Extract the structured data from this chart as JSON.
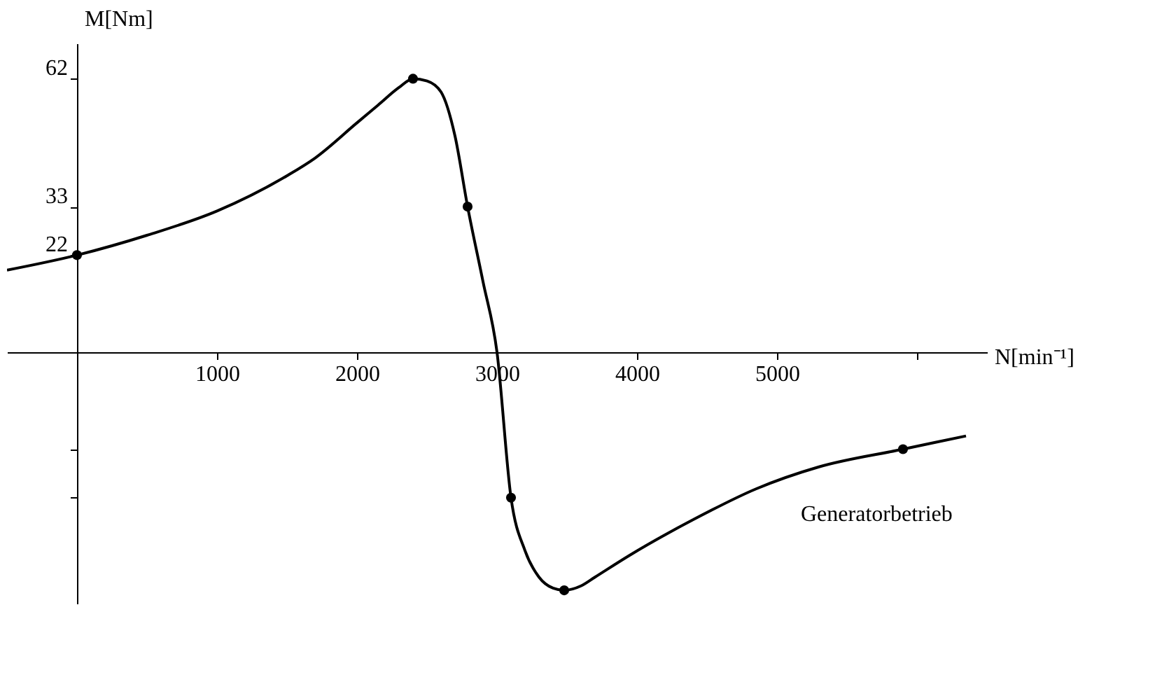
{
  "chart_data": {
    "type": "line",
    "xlabel": "N[min⁻¹]",
    "ylabel": "M[Nm]",
    "xlim": [
      -500,
      6500
    ],
    "ylim": [
      -57,
      70
    ],
    "xticks": [
      1000,
      2000,
      3000,
      4000,
      5000,
      {
        "value": 6000,
        "label": null
      }
    ],
    "yticks": [
      62,
      33,
      22,
      {
        "value": -22,
        "label": null
      },
      {
        "value": -33,
        "label": null
      }
    ],
    "grid": false,
    "series": [
      {
        "color": "#000000",
        "marker": "none",
        "x": [
          -500,
          0,
          500,
          1000,
          1500,
          1700,
          2000,
          2150,
          2300,
          2400,
          2500,
          2600,
          2700,
          2790,
          2900,
          3000,
          3100,
          3200,
          3300,
          3400,
          3480,
          3600,
          3700,
          3950,
          4400,
          4850,
          5300,
          5900,
          6350
        ],
        "values": [
          18.6,
          22,
          26.5,
          32,
          40,
          44,
          52,
          56,
          60,
          62,
          61.5,
          59,
          49,
          33,
          16,
          0,
          -33,
          -45,
          -51,
          -53.5,
          -54,
          -53,
          -51,
          -46,
          -38,
          -31,
          -26,
          -22,
          -19
        ]
      },
      {
        "type": "scatter",
        "color": "#000000",
        "marker": "circle",
        "x": [
          0,
          2400,
          2790,
          3100,
          3480,
          5900
        ],
        "values": [
          22,
          62,
          33,
          -33,
          -54,
          -22
        ]
      }
    ],
    "annotations": [
      "Generatorbetrieb"
    ]
  }
}
